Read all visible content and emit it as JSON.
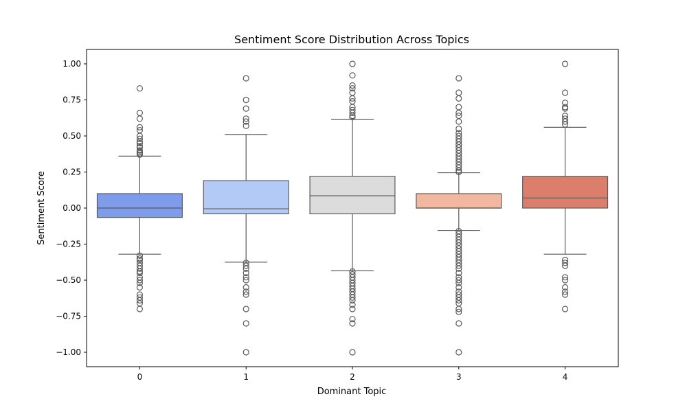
{
  "chart_data": {
    "type": "boxplot",
    "title": "Sentiment Score Distribution Across Topics",
    "xlabel": "Dominant Topic",
    "ylabel": "Sentiment Score",
    "ylim": [
      -1.1,
      1.1
    ],
    "yticks": [
      1.0,
      0.75,
      0.5,
      0.25,
      0.0,
      -0.25,
      -0.5,
      -0.75,
      -1.0
    ],
    "ytick_labels": [
      "1.00",
      "0.75",
      "0.50",
      "0.25",
      "0.00",
      "−0.25",
      "−0.50",
      "−0.75",
      "−1.00"
    ],
    "categories": [
      "0",
      "1",
      "2",
      "3",
      "4"
    ],
    "grid": false,
    "line_color": "#595959",
    "boxes": [
      {
        "category": "0",
        "color": "#7f9cea",
        "whisker_low": -0.32,
        "q1": -0.065,
        "median": 0.0,
        "q3": 0.1,
        "whisker_high": 0.36,
        "outliers": [
          0.83,
          0.66,
          0.62,
          0.56,
          0.54,
          0.5,
          0.48,
          0.46,
          0.45,
          0.43,
          0.42,
          0.4,
          0.39,
          0.38,
          0.37,
          -0.33,
          -0.35,
          -0.36,
          -0.38,
          -0.4,
          -0.42,
          -0.44,
          -0.45,
          -0.48,
          -0.5,
          -0.52,
          -0.55,
          -0.6,
          -0.62,
          -0.64,
          -0.66,
          -0.7
        ]
      },
      {
        "category": "1",
        "color": "#b2caf5",
        "whisker_low": -0.375,
        "q1": -0.04,
        "median": -0.005,
        "q3": 0.19,
        "whisker_high": 0.51,
        "outliers": [
          0.9,
          0.75,
          0.69,
          0.62,
          0.6,
          0.57,
          -0.38,
          -0.4,
          -0.42,
          -0.45,
          -0.48,
          -0.5,
          -0.55,
          -0.58,
          -0.6,
          -0.7,
          -0.8,
          -1.0
        ]
      },
      {
        "category": "2",
        "color": "#dcdcdc",
        "whisker_low": -0.435,
        "q1": -0.04,
        "median": 0.085,
        "q3": 0.22,
        "whisker_high": 0.615,
        "outliers": [
          1.0,
          0.92,
          0.85,
          0.83,
          0.8,
          0.76,
          0.74,
          0.7,
          0.68,
          0.66,
          0.64,
          0.63,
          -0.44,
          -0.46,
          -0.48,
          -0.5,
          -0.52,
          -0.54,
          -0.56,
          -0.58,
          -0.6,
          -0.62,
          -0.64,
          -0.67,
          -0.7,
          -0.77,
          -0.8,
          -1.0
        ]
      },
      {
        "category": "3",
        "color": "#f1b89f",
        "whisker_low": -0.155,
        "q1": 0.0,
        "median": 0.0,
        "q3": 0.1,
        "whisker_high": 0.245,
        "outliers": [
          0.9,
          0.8,
          0.76,
          0.7,
          0.66,
          0.64,
          0.6,
          0.55,
          0.52,
          0.5,
          0.48,
          0.46,
          0.44,
          0.42,
          0.4,
          0.38,
          0.36,
          0.34,
          0.32,
          0.3,
          0.28,
          0.26,
          0.25,
          -0.16,
          -0.18,
          -0.2,
          -0.22,
          -0.24,
          -0.26,
          -0.28,
          -0.3,
          -0.32,
          -0.34,
          -0.36,
          -0.38,
          -0.4,
          -0.42,
          -0.45,
          -0.48,
          -0.5,
          -0.52,
          -0.55,
          -0.58,
          -0.6,
          -0.62,
          -0.64,
          -0.66,
          -0.7,
          -0.72,
          -0.8,
          -1.0
        ]
      },
      {
        "category": "4",
        "color": "#dc7e6c",
        "whisker_low": -0.32,
        "q1": 0.0,
        "median": 0.07,
        "q3": 0.22,
        "whisker_high": 0.56,
        "outliers": [
          1.0,
          0.8,
          0.73,
          0.7,
          0.69,
          0.64,
          0.62,
          0.6,
          0.58,
          -0.36,
          -0.38,
          -0.4,
          -0.48,
          -0.5,
          -0.55,
          -0.58,
          -0.6,
          -0.7
        ]
      }
    ]
  }
}
